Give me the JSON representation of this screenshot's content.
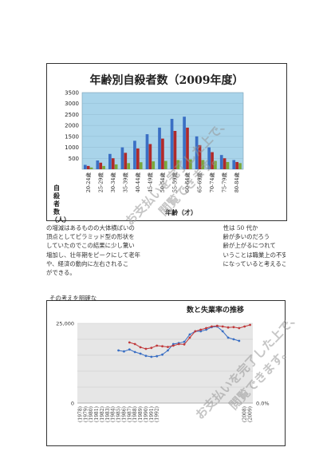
{
  "chart1": {
    "title": "年齢別自殺者数（2009年度）",
    "ylabel": "自殺者数（人）",
    "xlabel": "年齢（才）",
    "ylim": [
      0,
      3500
    ],
    "yticks": [
      "3500",
      "3000",
      "2500",
      "2000",
      "1500",
      "1000",
      "500"
    ],
    "categories": [
      "20-24歳",
      "25-29歳",
      "30-34歳",
      "35-39歳",
      "40-44歳",
      "45-49歳",
      "50-54歳",
      "55-59歳",
      "60-64歳",
      "65-69歳",
      "70-74歳",
      "75-79歳",
      "80-84歳"
    ],
    "series_colors": [
      "#3a6fc4",
      "#b02a2a",
      "#7aa83a"
    ]
  },
  "chart_data": [
    {
      "type": "bar",
      "title": "年齢別自殺者数（2009年度）",
      "xlabel": "年齢（才）",
      "ylabel": "自殺者数（人）",
      "ylim": [
        0,
        3500
      ],
      "categories": [
        "20-24歳",
        "25-29歳",
        "30-34歳",
        "35-39歳",
        "40-44歳",
        "45-49歳",
        "50-54歳",
        "55-59歳",
        "60-64歳",
        "65-69歳",
        "70-74歳",
        "75-79歳",
        "80-84歳"
      ],
      "series": [
        {
          "values": [
            200,
            400,
            700,
            1000,
            1300,
            1600,
            1900,
            2300,
            2400,
            1500,
            1000,
            650,
            420
          ]
        },
        {
          "values": [
            150,
            300,
            500,
            750,
            950,
            1150,
            1400,
            1750,
            1900,
            1100,
            780,
            500,
            330
          ]
        },
        {
          "values": [
            80,
            150,
            220,
            280,
            320,
            360,
            380,
            420,
            450,
            420,
            380,
            330,
            280
          ]
        }
      ]
    },
    {
      "type": "line",
      "title": "数と失業率の推移",
      "ylim": [
        0,
        25000
      ],
      "x": [
        "1978",
        "1979",
        "1980",
        "1981",
        "1982",
        "1983",
        "1984",
        "1985",
        "1986",
        "1987",
        "1988",
        "1989",
        "1990",
        "1991",
        "1992",
        "1993",
        "1994",
        "1995",
        "1996",
        "1997",
        "1998",
        "1999",
        "2000",
        "2001",
        "2002",
        "2003",
        "2004",
        "2005",
        "2006",
        "2007",
        "2008",
        "2009"
      ],
      "series": [
        {
          "color": "#3a6fc4",
          "values": [
            null,
            null,
            null,
            null,
            null,
            null,
            null,
            16500,
            16200,
            16800,
            16000,
            15500,
            14800,
            14500,
            14700,
            15200,
            16500,
            18500,
            18800,
            19200,
            21500,
            22500,
            22500,
            23000,
            23800,
            24000,
            22500,
            20500,
            20000,
            19500,
            null,
            null
          ]
        },
        {
          "color": "#c0393b",
          "values": [
            null,
            null,
            null,
            null,
            null,
            null,
            null,
            null,
            null,
            19000,
            18500,
            17500,
            17000,
            17300,
            18000,
            17800,
            17600,
            18000,
            18500,
            18400,
            20500,
            22500,
            23000,
            23500,
            24000,
            24200,
            24000,
            23700,
            23800,
            23500,
            24000,
            24500
          ]
        }
      ]
    }
  ],
  "paragraph": {
    "lines": [
      "の増減はあるものの大体横ばいの　　　　　　　　　　　　　　　性は 50 代か",
      "頂点としてピラミッド型の形状を　　　　　　　　　　　　　　　齢が多いのだろう",
      "していたのでこの結果に少し驚い　　　　　　　　　　　　　　　齢が上がるにつれて",
      "増加し、壮年期をピークにして老年　　　　　　　　　　　　　　いうことは職業上の不安",
      "や、経済の動向に左右されるこ　　　　　　　　　　　　　　　　になっていると考えること",
      "ができる。"
    ]
  },
  "lead": "その考えを明確な",
  "chart2": {
    "title": "数と失業率の推移",
    "ytick_top": "25,000",
    "ytick_zero": "0",
    "right_zero": "0.0%",
    "xtick_labels": [
      "(1978)",
      "(1979)",
      "(1980)",
      "(1981)",
      "(1982)",
      "(1983)",
      "(1984)",
      "(1985)",
      "(1986)",
      "(1987)",
      "(1988)",
      "(1989)",
      "(1990)",
      "(1991)",
      "(1992)"
    ],
    "right_xtick_labels": [
      "(2008)",
      "(2009)"
    ]
  },
  "watermark": {
    "line1": "お支払いを完了した上で、",
    "line2": "閲覧できます。"
  }
}
